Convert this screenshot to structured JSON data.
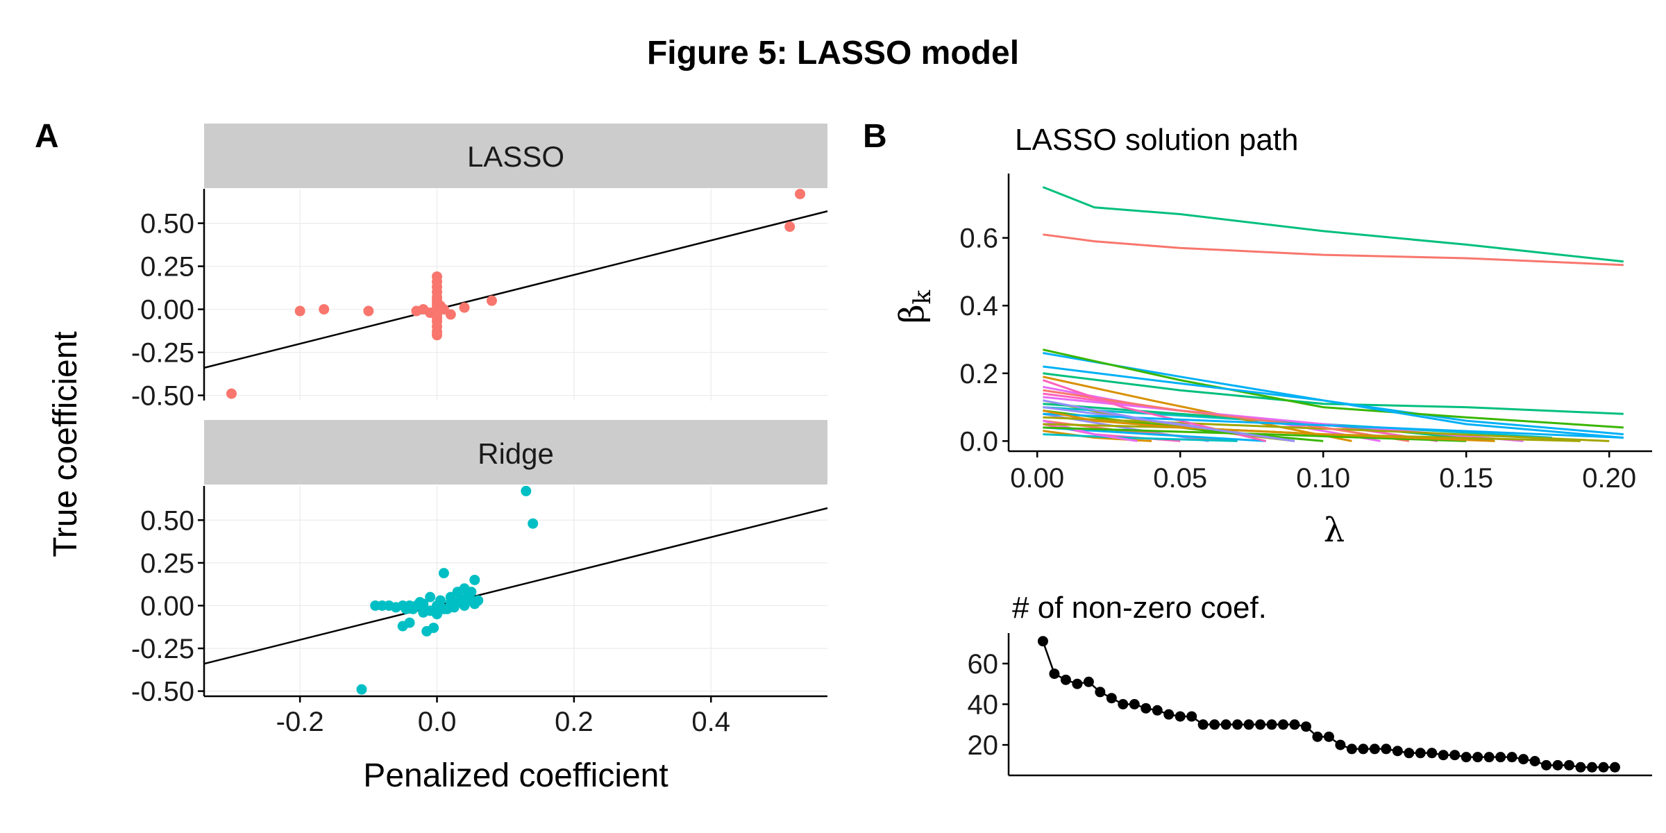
{
  "title": "Figure 5: LASSO model",
  "panels": {
    "a_label": "A",
    "b_label": "B"
  },
  "colors": {
    "lasso": "#F8766D",
    "ridge": "#00BFC4",
    "strip": "#cccccc",
    "line": "#000000"
  },
  "chart_data": [
    {
      "id": "A",
      "type": "scatter",
      "facets": [
        "LASSO",
        "Ridge"
      ],
      "xlabel": "Penalized coefficient",
      "ylabel": "True coefficient",
      "xlim": [
        -0.34,
        0.57
      ],
      "ylim": [
        -0.53,
        0.7
      ],
      "xticks": [
        -0.2,
        0.0,
        0.2,
        0.4
      ],
      "xtick_labels": [
        "-0.2",
        "0.0",
        "0.2",
        "0.4"
      ],
      "yticks": [
        -0.5,
        -0.25,
        0.0,
        0.25,
        0.5
      ],
      "ytick_labels": [
        "-0.50",
        "-0.25",
        "0.00",
        "0.25",
        "0.50"
      ],
      "reference_line": {
        "slope": 1.0,
        "intercept": 0.0
      },
      "series": [
        {
          "name": "LASSO",
          "points": [
            [
              -0.3,
              -0.49
            ],
            [
              -0.2,
              -0.01
            ],
            [
              -0.165,
              0.0
            ],
            [
              -0.1,
              -0.01
            ],
            [
              -0.03,
              -0.01
            ],
            [
              -0.02,
              0.0
            ],
            [
              -0.01,
              -0.02
            ],
            [
              0.0,
              0.19
            ],
            [
              0.0,
              0.16
            ],
            [
              0.0,
              0.13
            ],
            [
              0.0,
              0.1
            ],
            [
              0.0,
              0.07
            ],
            [
              0.0,
              0.05
            ],
            [
              0.0,
              0.03
            ],
            [
              0.0,
              0.01
            ],
            [
              0.0,
              -0.01
            ],
            [
              0.0,
              -0.03
            ],
            [
              0.0,
              -0.05
            ],
            [
              0.0,
              -0.07
            ],
            [
              0.0,
              -0.1
            ],
            [
              0.0,
              -0.13
            ],
            [
              0.0,
              -0.15
            ],
            [
              0.005,
              0.02
            ],
            [
              0.01,
              0.0
            ],
            [
              0.02,
              -0.03
            ],
            [
              0.04,
              0.01
            ],
            [
              0.08,
              0.05
            ],
            [
              0.515,
              0.48
            ],
            [
              0.53,
              0.67
            ]
          ]
        },
        {
          "name": "Ridge",
          "points": [
            [
              -0.11,
              -0.49
            ],
            [
              -0.09,
              0.0
            ],
            [
              -0.08,
              0.0
            ],
            [
              -0.07,
              0.0
            ],
            [
              -0.06,
              -0.01
            ],
            [
              -0.05,
              -0.12
            ],
            [
              -0.05,
              0.0
            ],
            [
              -0.045,
              -0.02
            ],
            [
              -0.04,
              -0.1
            ],
            [
              -0.04,
              0.0
            ],
            [
              -0.035,
              -0.02
            ],
            [
              -0.03,
              0.0
            ],
            [
              -0.025,
              0.02
            ],
            [
              -0.02,
              -0.04
            ],
            [
              -0.02,
              0.01
            ],
            [
              -0.015,
              -0.15
            ],
            [
              -0.01,
              -0.03
            ],
            [
              -0.01,
              0.05
            ],
            [
              -0.005,
              -0.13
            ],
            [
              0.0,
              0.0
            ],
            [
              0.0,
              -0.05
            ],
            [
              0.005,
              0.03
            ],
            [
              0.01,
              -0.02
            ],
            [
              0.01,
              0.19
            ],
            [
              0.015,
              -0.02
            ],
            [
              0.02,
              0.05
            ],
            [
              0.02,
              0.02
            ],
            [
              0.025,
              -0.01
            ],
            [
              0.03,
              0.08
            ],
            [
              0.03,
              0.02
            ],
            [
              0.035,
              0.04
            ],
            [
              0.04,
              0.1
            ],
            [
              0.04,
              0.0
            ],
            [
              0.045,
              0.06
            ],
            [
              0.05,
              0.03
            ],
            [
              0.05,
              0.08
            ],
            [
              0.055,
              0.01
            ],
            [
              0.055,
              0.15
            ],
            [
              0.06,
              0.03
            ],
            [
              0.13,
              0.67
            ],
            [
              0.14,
              0.48
            ]
          ]
        }
      ]
    },
    {
      "id": "B-path",
      "type": "line",
      "title": "LASSO solution path",
      "xlabel": "λ",
      "ylabel_symbol": "β",
      "ylabel_sub": "k",
      "xlim": [
        -0.01,
        0.215
      ],
      "ylim": [
        -0.03,
        0.79
      ],
      "xticks": [
        0.0,
        0.05,
        0.1,
        0.15,
        0.2
      ],
      "xtick_labels": [
        "0.00",
        "0.05",
        "0.10",
        "0.15",
        "0.20"
      ],
      "yticks": [
        0.0,
        0.2,
        0.4,
        0.6
      ],
      "ytick_labels": [
        "0.0",
        "0.2",
        "0.4",
        "0.6"
      ],
      "series": [
        {
          "name": "coef-top",
          "color": "#00BF7D",
          "x": [
            0.002,
            0.02,
            0.05,
            0.1,
            0.15,
            0.205
          ],
          "y": [
            0.75,
            0.69,
            0.67,
            0.62,
            0.58,
            0.53
          ]
        },
        {
          "name": "coef-second",
          "color": "#F8766D",
          "x": [
            0.002,
            0.02,
            0.05,
            0.1,
            0.15,
            0.205
          ],
          "y": [
            0.61,
            0.59,
            0.57,
            0.55,
            0.54,
            0.52
          ]
        },
        {
          "name": "coef-3",
          "color": "#00BF7D",
          "x": [
            0.002,
            0.05,
            0.1,
            0.15,
            0.205
          ],
          "y": [
            0.2,
            0.15,
            0.11,
            0.1,
            0.08
          ]
        },
        {
          "name": "coef-4",
          "color": "#00B0F6",
          "x": [
            0.002,
            0.05,
            0.1,
            0.15,
            0.205
          ],
          "y": [
            0.26,
            0.19,
            0.12,
            0.06,
            0.02
          ]
        },
        {
          "name": "coef-5",
          "color": "#39B600",
          "x": [
            0.002,
            0.05,
            0.1,
            0.15,
            0.205
          ],
          "y": [
            0.27,
            0.18,
            0.1,
            0.07,
            0.04
          ]
        },
        {
          "name": "coef-6",
          "color": "#00B0F6",
          "x": [
            0.002,
            0.05,
            0.1,
            0.15,
            0.205
          ],
          "y": [
            0.22,
            0.17,
            0.12,
            0.05,
            0.01
          ]
        },
        {
          "name": "coef-7",
          "color": "#E76BF3",
          "x": [
            0.002,
            0.04,
            0.08,
            0.12
          ],
          "y": [
            0.16,
            0.1,
            0.06,
            0.0
          ]
        },
        {
          "name": "coef-8",
          "color": "#FF62BC",
          "x": [
            0.002,
            0.05,
            0.1,
            0.14
          ],
          "y": [
            0.14,
            0.09,
            0.05,
            0.0
          ]
        },
        {
          "name": "coef-9",
          "color": "#A3A500",
          "x": [
            0.002,
            0.03,
            0.06,
            0.09
          ],
          "y": [
            0.12,
            0.07,
            0.03,
            0.0
          ]
        },
        {
          "name": "coef-10",
          "color": "#00BFC4",
          "x": [
            0.002,
            0.06,
            0.12,
            0.18
          ],
          "y": [
            0.1,
            0.07,
            0.04,
            0.01
          ]
        },
        {
          "name": "coef-11",
          "color": "#9590FF",
          "x": [
            0.002,
            0.03,
            0.06
          ],
          "y": [
            0.08,
            0.04,
            0.0
          ]
        },
        {
          "name": "coef-12",
          "color": "#D89000",
          "x": [
            0.002,
            0.04,
            0.08,
            0.11
          ],
          "y": [
            0.19,
            0.12,
            0.05,
            0.0
          ]
        },
        {
          "name": "coef-13",
          "color": "#F8766D",
          "x": [
            0.002,
            0.03,
            0.07
          ],
          "y": [
            0.06,
            0.03,
            0.0
          ]
        },
        {
          "name": "coef-14",
          "color": "#00BF7D",
          "x": [
            0.002,
            0.05,
            0.1,
            0.16
          ],
          "y": [
            0.11,
            0.08,
            0.05,
            0.0
          ]
        },
        {
          "name": "coef-15",
          "color": "#FF62BC",
          "x": [
            0.002,
            0.02,
            0.05
          ],
          "y": [
            0.05,
            0.02,
            0.0
          ]
        },
        {
          "name": "coef-16",
          "color": "#E76BF3",
          "x": [
            0.002,
            0.05,
            0.1,
            0.17
          ],
          "y": [
            0.13,
            0.09,
            0.05,
            0.0
          ]
        },
        {
          "name": "coef-17",
          "color": "#00B0F6",
          "x": [
            0.002,
            0.04,
            0.08
          ],
          "y": [
            0.04,
            0.02,
            0.0
          ]
        },
        {
          "name": "coef-18",
          "color": "#39B600",
          "x": [
            0.002,
            0.03,
            0.06,
            0.1
          ],
          "y": [
            0.09,
            0.06,
            0.03,
            0.0
          ]
        },
        {
          "name": "coef-19",
          "color": "#A3A500",
          "x": [
            0.002,
            0.06,
            0.12,
            0.2
          ],
          "y": [
            0.07,
            0.05,
            0.03,
            0.0
          ]
        },
        {
          "name": "coef-20",
          "color": "#D89000",
          "x": [
            0.002,
            0.02,
            0.04
          ],
          "y": [
            0.03,
            0.01,
            0.0
          ]
        },
        {
          "name": "coef-21",
          "color": "#9590FF",
          "x": [
            0.002,
            0.05,
            0.09
          ],
          "y": [
            0.1,
            0.05,
            0.0
          ]
        },
        {
          "name": "coef-22",
          "color": "#00BFC4",
          "x": [
            0.002,
            0.03,
            0.07
          ],
          "y": [
            0.02,
            0.01,
            0.0
          ]
        },
        {
          "name": "coef-23",
          "color": "#F8766D",
          "x": [
            0.002,
            0.05,
            0.1,
            0.13
          ],
          "y": [
            0.15,
            0.09,
            0.04,
            0.0
          ]
        },
        {
          "name": "coef-24",
          "color": "#FF62BC",
          "x": [
            0.002,
            0.03,
            0.06,
            0.08
          ],
          "y": [
            0.18,
            0.1,
            0.04,
            0.0
          ]
        },
        {
          "name": "coef-25",
          "color": "#E76BF3",
          "x": [
            0.002,
            0.02,
            0.035
          ],
          "y": [
            0.06,
            0.02,
            0.0
          ]
        },
        {
          "name": "coef-26",
          "color": "#00B0F6",
          "x": [
            0.002,
            0.06,
            0.12,
            0.205
          ],
          "y": [
            0.08,
            0.06,
            0.04,
            0.01
          ]
        },
        {
          "name": "coef-27",
          "color": "#39B600",
          "x": [
            0.002,
            0.04,
            0.08,
            0.15
          ],
          "y": [
            0.04,
            0.03,
            0.02,
            0.0
          ]
        },
        {
          "name": "coef-28",
          "color": "#A3A500",
          "x": [
            0.002,
            0.05,
            0.1,
            0.19
          ],
          "y": [
            0.05,
            0.04,
            0.02,
            0.0
          ]
        },
        {
          "name": "coef-29",
          "color": "#D89000",
          "x": [
            0.002,
            0.02,
            0.05,
            0.1,
            0.16
          ],
          "y": [
            0.09,
            0.06,
            0.04,
            0.02,
            0.0
          ]
        },
        {
          "name": "coef-30",
          "color": "#9590FF",
          "x": [
            0.002,
            0.04,
            0.09
          ],
          "y": [
            0.12,
            0.06,
            0.0
          ]
        }
      ]
    },
    {
      "id": "B-count",
      "type": "line",
      "title": "# of non-zero coef.",
      "xlim": [
        -0.01,
        0.215
      ],
      "ylim": [
        5,
        75
      ],
      "yticks": [
        20,
        40,
        60
      ],
      "ytick_labels": [
        "20",
        "40",
        "60"
      ],
      "x": [
        0.002,
        0.006,
        0.01,
        0.014,
        0.018,
        0.022,
        0.026,
        0.03,
        0.034,
        0.038,
        0.042,
        0.046,
        0.05,
        0.054,
        0.058,
        0.062,
        0.066,
        0.07,
        0.074,
        0.078,
        0.082,
        0.086,
        0.09,
        0.094,
        0.098,
        0.102,
        0.106,
        0.11,
        0.114,
        0.118,
        0.122,
        0.126,
        0.13,
        0.134,
        0.138,
        0.142,
        0.146,
        0.15,
        0.154,
        0.158,
        0.162,
        0.166,
        0.17,
        0.174,
        0.178,
        0.182,
        0.186,
        0.19,
        0.194,
        0.198,
        0.202
      ],
      "values": [
        71,
        55,
        52,
        50,
        51,
        46,
        43,
        40,
        40,
        38,
        37,
        35,
        34,
        34,
        30,
        30,
        30,
        30,
        30,
        30,
        30,
        30,
        30,
        29,
        24,
        24,
        20,
        18,
        18,
        18,
        18,
        17,
        16,
        16,
        16,
        15,
        15,
        14,
        14,
        14,
        14,
        14,
        13,
        12,
        10,
        10,
        10,
        9,
        9,
        9,
        9
      ]
    }
  ]
}
